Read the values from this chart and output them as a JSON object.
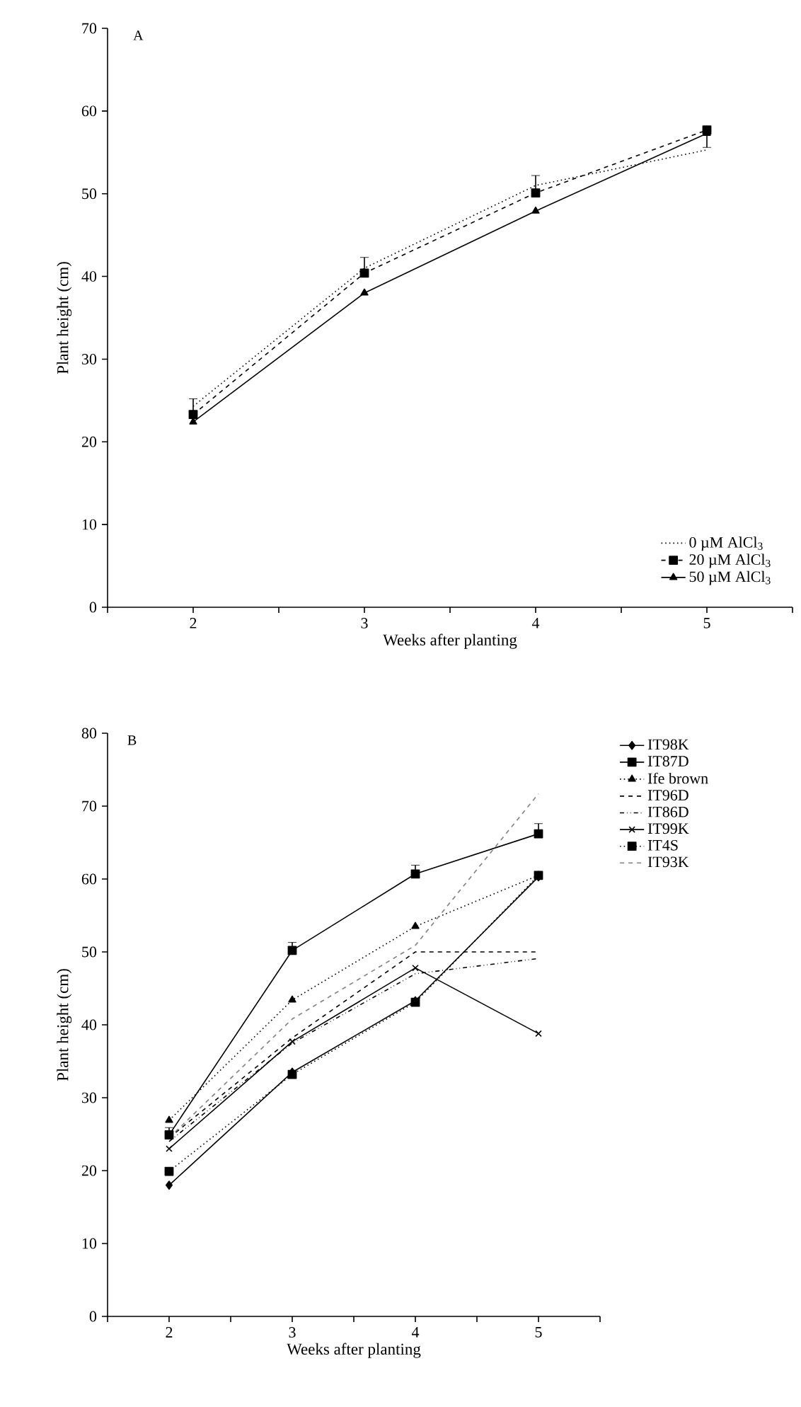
{
  "chart_data": [
    {
      "type": "line",
      "title": "A",
      "xlabel": "Weeks after planting",
      "ylabel": "Plant height (cm)",
      "x": [
        2,
        3,
        4,
        5
      ],
      "xlim": [
        1.5,
        5.5
      ],
      "xticks": [
        {
          "value": 1.5,
          "label": null
        },
        2,
        {
          "value": 2.5,
          "label": null
        },
        3,
        {
          "value": 3.5,
          "label": null
        },
        4,
        {
          "value": 4.5,
          "label": null
        },
        5,
        {
          "value": 5.5,
          "label": null
        }
      ],
      "ylim": [
        0,
        70
      ],
      "yticks": [
        0,
        10,
        20,
        30,
        40,
        50,
        60,
        70
      ],
      "legend": "bottom right",
      "grid": false,
      "series": [
        {
          "name": "0 µM AlCl$_{3}$",
          "color": "#000000",
          "line_style": "dotted",
          "marker": "none",
          "values": [
            24.3,
            41.0,
            51.0,
            55.3
          ]
        },
        {
          "name": "20 µM AlCl$_{3}$",
          "color": "#000000",
          "line_style": "dashed",
          "marker": "square",
          "values": [
            23.3,
            40.4,
            50.1,
            57.7
          ],
          "errors": [
            [
              23.3,
              25.2
            ],
            [
              40.4,
              42.3
            ],
            [
              50.1,
              52.2
            ],
            [
              55.6,
              57.7
            ]
          ]
        },
        {
          "name": "50 µM AlCl$_{3}$",
          "color": "#000000",
          "line_style": "solid",
          "marker": "triangle",
          "values": [
            22.4,
            38.0,
            47.9,
            57.3
          ]
        }
      ]
    },
    {
      "type": "line",
      "title": "B",
      "xlabel": "Weeks after planting",
      "ylabel": "Plant height (cm)",
      "x": [
        2,
        3,
        4,
        5
      ],
      "xlim": [
        1.5,
        5.5
      ],
      "xticks": [
        {
          "value": 1.5,
          "label": null
        },
        2,
        {
          "value": 2.5,
          "label": null
        },
        3,
        {
          "value": 3.5,
          "label": null
        },
        4,
        {
          "value": 4.5,
          "label": null
        },
        5,
        {
          "value": 5.5,
          "label": null
        }
      ],
      "ylim": [
        0,
        80
      ],
      "yticks": [
        0,
        10,
        20,
        30,
        40,
        50,
        60,
        70,
        80
      ],
      "legend": "top right",
      "grid": false,
      "series": [
        {
          "name": "IT98K",
          "color": "#000000",
          "line_style": "solid",
          "marker": "diamond",
          "values": [
            18.0,
            33.5,
            43.3,
            60.3
          ]
        },
        {
          "name": "IT87D",
          "color": "#000000",
          "line_style": "solid",
          "marker": "square",
          "values": [
            24.9,
            50.2,
            60.7,
            66.2
          ],
          "errors": [
            [
              24.9,
              25.9
            ],
            [
              50.2,
              51.3
            ],
            [
              60.7,
              61.9
            ],
            [
              66.2,
              67.6
            ]
          ]
        },
        {
          "name": "Ife brown",
          "color": "#000000",
          "line_style": "dotted",
          "marker": "triangle",
          "values": [
            26.9,
            43.4,
            53.5,
            60.5
          ]
        },
        {
          "name": "IT96D",
          "color": "#000000",
          "line_style": "dashed",
          "marker": "none",
          "values": [
            24.5,
            38.2,
            50.0,
            50.0
          ]
        },
        {
          "name": "IT86D",
          "color": "#000000",
          "line_style": "dashdot",
          "marker": "none",
          "values": [
            24.0,
            37.5,
            47.0,
            49.1
          ]
        },
        {
          "name": "IT99K",
          "color": "#000000",
          "line_style": "solid",
          "marker": "cross",
          "values": [
            23.0,
            37.7,
            47.8,
            38.8
          ]
        },
        {
          "name": "IT4S",
          "color": "#000000",
          "line_style": "dotted",
          "marker": "square",
          "values": [
            19.9,
            33.2,
            43.1,
            60.5
          ]
        },
        {
          "name": "IT93K",
          "color": "#808080",
          "line_style": "dashed",
          "marker": "none",
          "values": [
            24.5,
            40.8,
            50.9,
            71.7
          ]
        }
      ]
    }
  ]
}
